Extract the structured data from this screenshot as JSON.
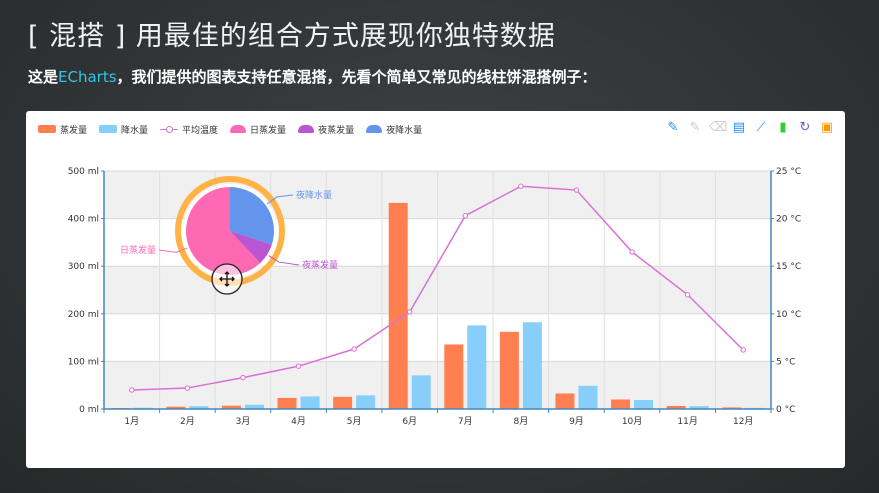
{
  "slide": {
    "title": "[ 混搭 ] 用最佳的组合方式展现你独特数据",
    "subtitle_prefix": "这是",
    "subtitle_brand": "ECharts",
    "subtitle_suffix": "，我们提供的图表支持任意混搭，先看个简单又常见的线柱饼混搭例子："
  },
  "legend": [
    {
      "label": "蒸发量",
      "color": "#ff7f50",
      "kind": "bar"
    },
    {
      "label": "降水量",
      "color": "#87cefa",
      "kind": "bar"
    },
    {
      "label": "平均温度",
      "color": "#da70d6",
      "kind": "line"
    },
    {
      "label": "日蒸发量",
      "color": "#ff69b4",
      "kind": "pie"
    },
    {
      "label": "夜蒸发量",
      "color": "#ba55d3",
      "kind": "pie"
    },
    {
      "label": "夜降水量",
      "color": "#6495ed",
      "kind": "pie"
    }
  ],
  "toolbox": [
    {
      "name": "mark-icon",
      "glyph": "✎",
      "color": "#1e90ff"
    },
    {
      "name": "mark-undo-icon",
      "glyph": "✎",
      "color": "#cccccc"
    },
    {
      "name": "mark-clear-icon",
      "glyph": "⌫",
      "color": "#cccccc"
    },
    {
      "name": "data-view-icon",
      "glyph": "▤",
      "color": "#1e90ff"
    },
    {
      "name": "line-chart-icon",
      "glyph": "⟋",
      "color": "#1e90ff"
    },
    {
      "name": "bar-chart-icon",
      "glyph": "▮",
      "color": "#32cd32"
    },
    {
      "name": "restore-icon",
      "glyph": "↻",
      "color": "#6a5acd"
    },
    {
      "name": "save-image-icon",
      "glyph": "▣",
      "color": "#ff9800"
    }
  ],
  "chart_data": {
    "type": "bar",
    "categories": [
      "1月",
      "2月",
      "3月",
      "4月",
      "5月",
      "6月",
      "7月",
      "8月",
      "9月",
      "10月",
      "11月",
      "12月"
    ],
    "series": [
      {
        "name": "蒸发量",
        "type": "bar",
        "color": "#ff7f50",
        "values": [
          2.0,
          4.9,
          7.0,
          23.2,
          25.6,
          433,
          135.6,
          162.2,
          32.6,
          20.0,
          6.4,
          3.3
        ]
      },
      {
        "name": "降水量",
        "type": "bar",
        "color": "#87cefa",
        "values": [
          2.6,
          5.9,
          9.0,
          26.4,
          28.7,
          70.7,
          175.6,
          182.2,
          48.7,
          18.8,
          6.0,
          2.3
        ]
      },
      {
        "name": "平均温度",
        "type": "line",
        "color": "#da70d6",
        "yAxis": "right",
        "values": [
          2.0,
          2.2,
          3.3,
          4.5,
          6.3,
          10.2,
          20.3,
          23.4,
          23.0,
          16.5,
          12.0,
          6.2
        ]
      }
    ],
    "yAxisLeft": {
      "ticks": [
        "0 ml",
        "100 ml",
        "200 ml",
        "300 ml",
        "400 ml",
        "500 ml"
      ],
      "ylim": [
        0,
        500
      ]
    },
    "yAxisRight": {
      "ticks": [
        "0 °C",
        "5 °C",
        "10 °C",
        "15 °C",
        "20 °C",
        "25 °C"
      ],
      "ylim": [
        0,
        25
      ]
    },
    "pie": {
      "slices": [
        {
          "name": "日蒸发量",
          "value": 62,
          "color": "#ff69b4"
        },
        {
          "name": "夜蒸发量",
          "value": 8,
          "color": "#ba55d3"
        },
        {
          "name": "夜降水量",
          "value": 30,
          "color": "#6495ed"
        }
      ],
      "ring_color": "#ffb347"
    }
  }
}
